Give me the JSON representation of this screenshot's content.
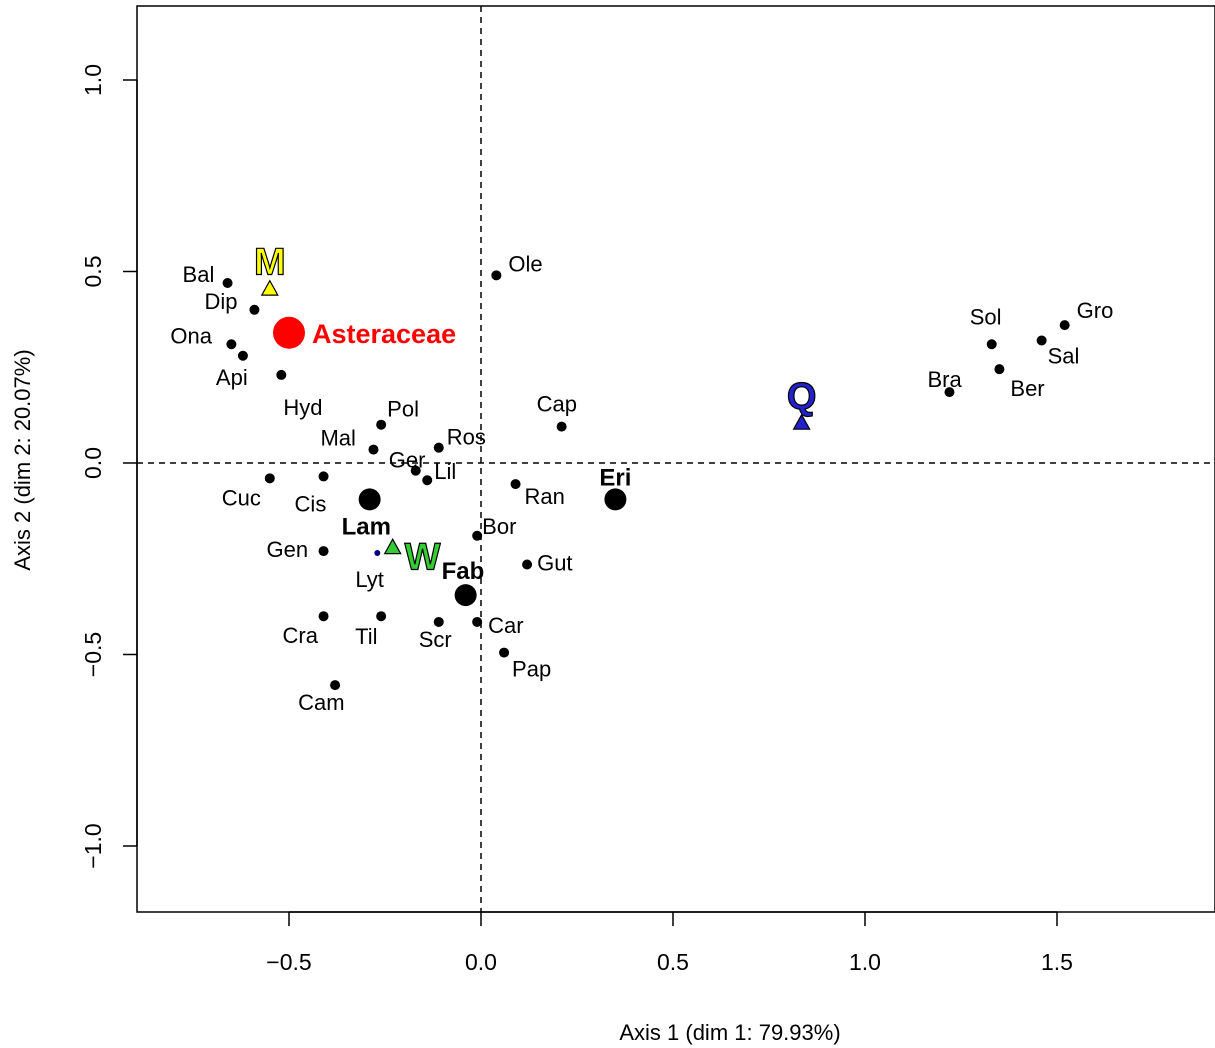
{
  "chart_data": {
    "type": "scatter",
    "xlabel": "Axis 1 (dim 1: 79.93%)",
    "ylabel": "Axis 2 (dim 2: 20.07%)",
    "xlim": [
      -0.9,
      1.9
    ],
    "ylim": [
      -1.18,
      1.2
    ],
    "xticks": [
      -0.5,
      0.0,
      0.5,
      1.0,
      1.5
    ],
    "yticks": [
      -1.0,
      -0.5,
      0.0,
      0.5,
      1.0
    ],
    "xtick_labels": [
      "−0.5",
      "0.0",
      "0.5",
      "1.0",
      "1.5"
    ],
    "ytick_labels": [
      "−1.0",
      "−0.5",
      "0.0",
      "0.5",
      "1.0"
    ],
    "reference_lines": {
      "x": 0,
      "y": 0,
      "style": "dashed"
    },
    "colors": {
      "asteraceae": "#ff0000",
      "M": "#ffff00",
      "W": "#33cc33",
      "Q": "#2222cc",
      "Lyt": "#000080"
    },
    "taxa": [
      {
        "label": "Bal",
        "x": -0.66,
        "y": 0.47
      },
      {
        "label": "Dip",
        "x": -0.59,
        "y": 0.4
      },
      {
        "label": "Ona",
        "x": -0.65,
        "y": 0.31
      },
      {
        "label": "Api",
        "x": -0.62,
        "y": 0.28
      },
      {
        "label": "Hyd",
        "x": -0.52,
        "y": 0.23
      },
      {
        "label": "Ole",
        "x": 0.04,
        "y": 0.49
      },
      {
        "label": "Pol",
        "x": -0.26,
        "y": 0.1
      },
      {
        "label": "Ros",
        "x": -0.11,
        "y": 0.04
      },
      {
        "label": "Mal",
        "x": -0.28,
        "y": 0.035
      },
      {
        "label": "Ger",
        "x": -0.17,
        "y": -0.02
      },
      {
        "label": "Lil",
        "x": -0.14,
        "y": -0.045
      },
      {
        "label": "Cuc",
        "x": -0.55,
        "y": -0.04
      },
      {
        "label": "Cis",
        "x": -0.41,
        "y": -0.035
      },
      {
        "label": "Cap",
        "x": 0.21,
        "y": 0.095
      },
      {
        "label": "Ran",
        "x": 0.09,
        "y": -0.055
      },
      {
        "label": "Bor",
        "x": -0.01,
        "y": -0.19
      },
      {
        "label": "Gut",
        "x": 0.12,
        "y": -0.265
      },
      {
        "label": "Gen",
        "x": -0.41,
        "y": -0.23
      },
      {
        "label": "Cra",
        "x": -0.41,
        "y": -0.4
      },
      {
        "label": "Til",
        "x": -0.26,
        "y": -0.4
      },
      {
        "label": "Scr",
        "x": -0.11,
        "y": -0.415
      },
      {
        "label": "Car",
        "x": -0.01,
        "y": -0.415
      },
      {
        "label": "Pap",
        "x": 0.06,
        "y": -0.495
      },
      {
        "label": "Cam",
        "x": -0.38,
        "y": -0.58
      },
      {
        "label": "Sol",
        "x": 1.33,
        "y": 0.31
      },
      {
        "label": "Gro",
        "x": 1.52,
        "y": 0.36
      },
      {
        "label": "Sal",
        "x": 1.46,
        "y": 0.32
      },
      {
        "label": "Bra",
        "x": 1.22,
        "y": 0.185
      },
      {
        "label": "Ber",
        "x": 1.35,
        "y": 0.245
      }
    ],
    "small_taxa": [
      {
        "label": "Lyt",
        "x": -0.27,
        "y": -0.235
      }
    ],
    "families": [
      {
        "label": "Lam",
        "x": -0.29,
        "y": -0.095
      },
      {
        "label": "Eri",
        "x": 0.35,
        "y": -0.095
      },
      {
        "label": "Fab",
        "x": -0.04,
        "y": -0.345
      }
    ],
    "highlight": {
      "label": "Asteraceae",
      "x": -0.5,
      "y": 0.34
    },
    "groups": [
      {
        "label": "M",
        "x": -0.55,
        "y": 0.455,
        "color": "#ffff00"
      },
      {
        "label": "W",
        "x": -0.23,
        "y": -0.22,
        "color": "#33cc33"
      },
      {
        "label": "Q",
        "x": 0.835,
        "y": 0.105,
        "color": "#2222cc"
      }
    ]
  }
}
